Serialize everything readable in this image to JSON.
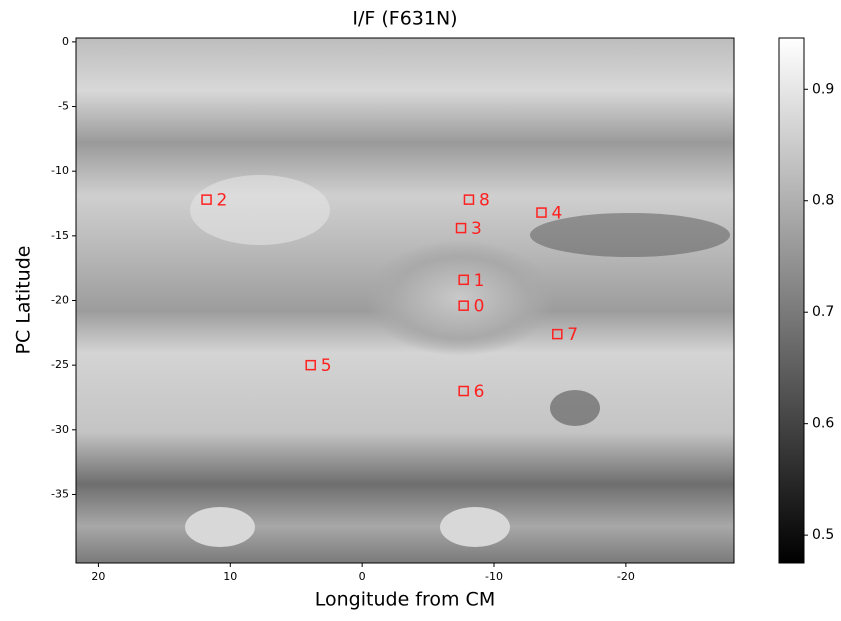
{
  "chart_data": {
    "type": "scatter",
    "title": "I/F (F631N)",
    "x_label": "Longitude from CM",
    "y_label": "PC Latitude",
    "xlim": [
      21.7,
      -28.2
    ],
    "xticks": [
      20,
      10,
      0,
      -10,
      -20
    ],
    "ylim": [
      -40.3,
      0.3
    ],
    "yticks": [
      0,
      -5,
      -10,
      -15,
      -20,
      -25,
      -30,
      -35
    ],
    "series": [
      {
        "color": "#ff2020",
        "labels": [
          "0",
          "1",
          "2",
          "3",
          "4",
          "5",
          "6",
          "7",
          "8"
        ],
        "x": [
          -7.7,
          -7.7,
          11.8,
          -7.5,
          -13.6,
          3.9,
          -7.7,
          -14.8,
          -8.1
        ],
        "y": [
          -20.4,
          -18.4,
          -12.2,
          -14.4,
          -13.2,
          -25.0,
          -27.0,
          -22.6,
          -12.2
        ]
      }
    ],
    "colorbar": {
      "lim": [
        0.475,
        0.946
      ],
      "ticks": [
        0.5,
        0.6,
        0.7,
        0.8,
        0.9
      ]
    }
  }
}
